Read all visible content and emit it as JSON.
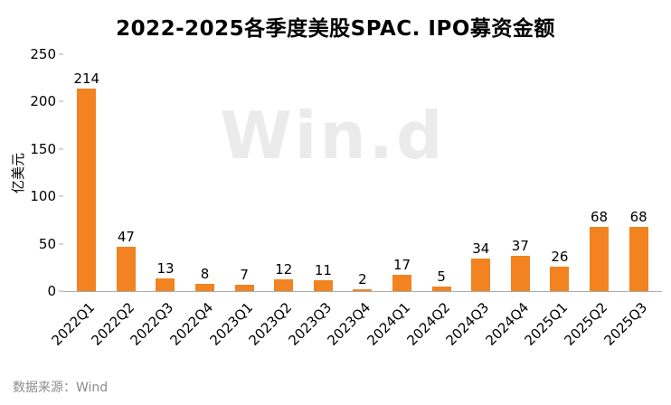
{
  "title": "2022-2025各季度美股SPAC. IPO募资金额",
  "source_text": "数据来源：Wind",
  "watermark_text": "Win.d",
  "colors": {
    "bar": "#f28320",
    "axis": "#ababab",
    "watermark": "#ebebeb",
    "source": "#8c8c8c"
  },
  "chart_data": {
    "type": "bar",
    "title": "2022-2025各季度美股SPAC. IPO募资金额",
    "xlabel": "",
    "ylabel": "亿美元",
    "categories": [
      "2022Q1",
      "2022Q2",
      "2022Q3",
      "2022Q4",
      "2023Q1",
      "2023Q2",
      "2023Q3",
      "2023Q4",
      "2024Q1",
      "2024Q2",
      "2024Q3",
      "2024Q4",
      "2025Q1",
      "2025Q2",
      "2025Q3"
    ],
    "values": [
      214,
      47,
      13,
      8,
      7,
      12,
      11,
      2,
      17,
      5,
      34,
      37,
      26,
      68,
      68
    ],
    "ylim": [
      0,
      250
    ],
    "yticks": [
      0,
      50,
      100,
      150,
      200,
      250
    ],
    "grid": false,
    "legend": false,
    "bar_color": "#f28320",
    "value_labels_shown": true
  }
}
